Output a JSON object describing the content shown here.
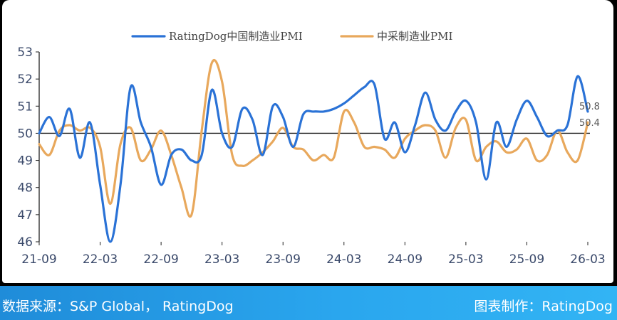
{
  "footer": {
    "source": "数据来源：S&P Global， RatingDog",
    "credit": "图表制作：RatingDog"
  },
  "colors": {
    "series_blue": "#2a72d6",
    "series_orange": "#e8a85c",
    "footer_blue": "#2aa6ee"
  },
  "chart_data": {
    "type": "line",
    "title": "",
    "xlabel": "",
    "ylabel": "",
    "ylim": [
      46,
      53
    ],
    "yticks": [
      "46",
      "47",
      "48",
      "49",
      "50",
      "51",
      "52",
      "53"
    ],
    "xticks": [
      "21-09",
      "22-03",
      "22-09",
      "23-03",
      "23-09",
      "24-03",
      "24-09",
      "25-03",
      "25-09",
      "26-03"
    ],
    "reference_line": 50,
    "grid": false,
    "legend": "top-center",
    "x": [
      "21-09",
      "21-10",
      "21-11",
      "21-12",
      "22-01",
      "22-02",
      "22-03",
      "22-04",
      "22-05",
      "22-06",
      "22-07",
      "22-08",
      "22-09",
      "22-10",
      "22-11",
      "22-12",
      "23-01",
      "23-02",
      "23-03",
      "23-04",
      "23-05",
      "23-06",
      "23-07",
      "23-08",
      "23-09",
      "23-10",
      "23-11",
      "23-12",
      "24-01",
      "24-02",
      "24-03",
      "24-04",
      "24-05",
      "24-06",
      "24-07",
      "24-08",
      "24-09",
      "24-10",
      "24-11",
      "24-12",
      "25-01",
      "25-02",
      "25-03",
      "25-04",
      "25-05",
      "25-06",
      "25-07",
      "25-08",
      "25-09",
      "25-10",
      "25-11",
      "25-12",
      "26-01",
      "26-02",
      "26-03"
    ],
    "series": [
      {
        "name": "RatingDog中国制造业PMI",
        "color": "#2a72d6",
        "values": [
          50.0,
          50.6,
          49.9,
          50.9,
          49.1,
          50.4,
          48.1,
          46.0,
          48.1,
          51.7,
          50.4,
          49.5,
          48.1,
          49.2,
          49.4,
          49.0,
          49.2,
          51.6,
          50.0,
          49.5,
          50.9,
          50.5,
          49.2,
          51.0,
          50.6,
          49.5,
          50.7,
          50.8,
          50.8,
          50.9,
          51.1,
          51.4,
          51.7,
          51.8,
          49.8,
          50.4,
          49.3,
          50.3,
          51.5,
          50.5,
          50.1,
          50.8,
          51.2,
          50.4,
          48.3,
          50.4,
          49.5,
          50.5,
          51.2,
          50.6,
          49.9,
          50.1,
          50.3,
          52.1,
          50.8
        ]
      },
      {
        "name": "中采制造业PMI",
        "color": "#e8a85c",
        "values": [
          49.6,
          49.2,
          50.1,
          50.3,
          50.1,
          50.2,
          49.5,
          47.4,
          49.6,
          50.2,
          49.0,
          49.4,
          50.1,
          49.2,
          48.0,
          47.0,
          50.1,
          52.6,
          51.9,
          49.2,
          48.8,
          49.0,
          49.3,
          49.7,
          50.2,
          49.5,
          49.4,
          49.0,
          49.2,
          49.1,
          50.8,
          50.4,
          49.5,
          49.5,
          49.4,
          49.1,
          49.8,
          50.1,
          50.3,
          50.1,
          49.1,
          50.2,
          50.5,
          49.0,
          49.5,
          49.7,
          49.3,
          49.4,
          49.8,
          49.0,
          49.2,
          50.1,
          49.3,
          49.0,
          50.4
        ]
      }
    ],
    "end_labels": [
      "50.8",
      "50.4"
    ]
  }
}
